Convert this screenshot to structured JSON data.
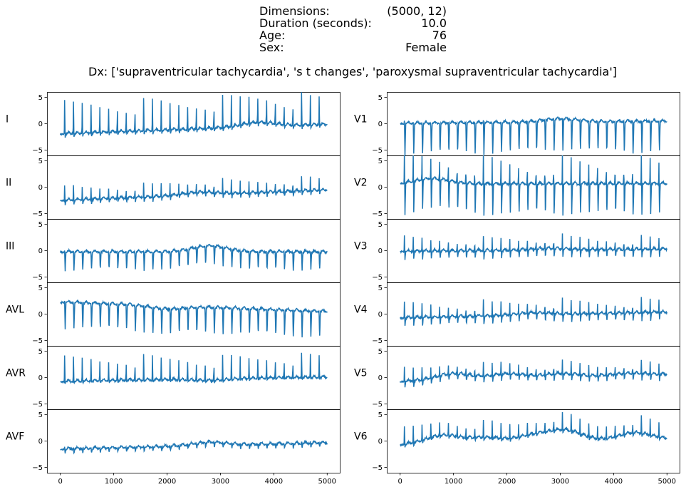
{
  "header": {
    "rows": [
      {
        "label": "Dimensions:",
        "value": "(5000, 12)"
      },
      {
        "label": "Duration (seconds):",
        "value": "10.0"
      },
      {
        "label": "Age:",
        "value": "76"
      },
      {
        "label": "Sex:",
        "value": "Female"
      }
    ],
    "dx": "Dx: ['supraventricular tachycardia', 's t changes', 'paroxysmal supraventricular tachycardia']"
  },
  "chart_data": {
    "type": "line",
    "title": "Dx: ['supraventricular tachycardia', 's t changes', 'paroxysmal supraventricular tachycardia']",
    "line_color": "#1f77b4",
    "xlim": [
      -250,
      5250
    ],
    "ylim": [
      -6,
      6
    ],
    "x_ticks": [
      "0",
      "1000",
      "2000",
      "3000",
      "4000",
      "5000"
    ],
    "y_ticks": [
      "−5",
      "0",
      "5"
    ],
    "heart_rate_beats": 30,
    "samples": 5000,
    "leads": [
      {
        "name": "I",
        "column": "left",
        "r_peak": 6.5,
        "s_depth": -0.6,
        "baseline_start": -2.0,
        "baseline_end": -0.2,
        "baseline_wander": [
          [
            3700,
            0.8
          ]
        ]
      },
      {
        "name": "II",
        "column": "left",
        "r_peak": 3.0,
        "s_depth": -0.8,
        "baseline_start": -2.6,
        "baseline_end": -0.6,
        "baseline_wander": [
          [
            2600,
            0.5
          ]
        ]
      },
      {
        "name": "III",
        "column": "left",
        "r_peak": 0.3,
        "s_depth": -3.5,
        "baseline_start": -0.3,
        "baseline_end": -0.3,
        "baseline_wander": [
          [
            2800,
            1.1
          ]
        ]
      },
      {
        "name": "AVL",
        "column": "left",
        "r_peak": 0.2,
        "s_depth": -5.0,
        "baseline_start": 2.2,
        "baseline_end": 0.4,
        "baseline_wander": [
          [
            2000,
            -0.6
          ]
        ]
      },
      {
        "name": "AVR",
        "column": "left",
        "r_peak": 5.0,
        "s_depth": -0.3,
        "baseline_start": -0.8,
        "baseline_end": 0.0,
        "baseline_wander": [
          [
            2800,
            -0.3
          ]
        ]
      },
      {
        "name": "AVF",
        "column": "left",
        "r_peak": 0.4,
        "s_depth": -0.8,
        "baseline_start": -1.6,
        "baseline_end": -0.4,
        "baseline_wander": [
          [
            2800,
            0.6
          ]
        ]
      },
      {
        "name": "V1",
        "column": "right",
        "r_peak": 0.5,
        "s_depth": -6.0,
        "baseline_start": 0.0,
        "baseline_end": 0.4,
        "baseline_wander": [
          [
            3000,
            0.6
          ]
        ]
      },
      {
        "name": "V2",
        "column": "right",
        "r_peak": 6.0,
        "s_depth": -6.0,
        "baseline_start": 0.5,
        "baseline_end": 0.6,
        "baseline_wander": [
          [
            600,
            1.0
          ]
        ]
      },
      {
        "name": "V3",
        "column": "right",
        "r_peak": 3.0,
        "s_depth": -1.5,
        "baseline_start": -0.2,
        "baseline_end": 0.2,
        "baseline_wander": [
          [
            2800,
            0.3
          ]
        ]
      },
      {
        "name": "V4",
        "column": "right",
        "r_peak": 3.2,
        "s_depth": -1.5,
        "baseline_start": -0.8,
        "baseline_end": 0.3,
        "baseline_wander": [
          [
            2500,
            0.4
          ]
        ]
      },
      {
        "name": "V5",
        "column": "right",
        "r_peak": 2.8,
        "s_depth": -1.2,
        "baseline_start": -0.8,
        "baseline_end": 0.5,
        "baseline_wander": [
          [
            1000,
            1.2
          ],
          [
            2000,
            0.9
          ],
          [
            3000,
            0.7
          ],
          [
            4300,
            0.4
          ]
        ]
      },
      {
        "name": "V6",
        "column": "right",
        "r_peak": 3.5,
        "s_depth": -0.5,
        "baseline_start": -0.8,
        "baseline_end": 0.2,
        "baseline_wander": [
          [
            800,
            1.6
          ],
          [
            1600,
            1.0
          ],
          [
            2500,
            1.2
          ],
          [
            3100,
            2.0
          ],
          [
            4400,
            1.4
          ]
        ]
      }
    ]
  }
}
